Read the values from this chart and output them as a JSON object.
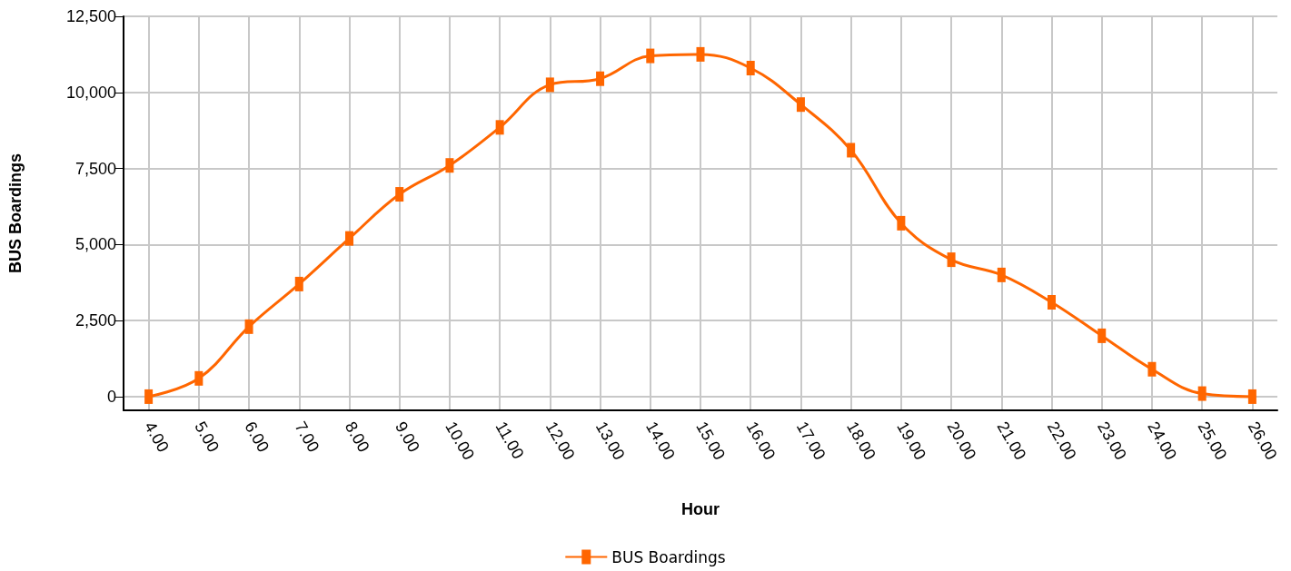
{
  "chart_data": {
    "type": "line",
    "xlabel": "Hour",
    "ylabel": "BUS Boardings",
    "x": [
      4,
      5,
      6,
      7,
      8,
      9,
      10,
      11,
      12,
      13,
      14,
      15,
      16,
      17,
      18,
      19,
      20,
      21,
      22,
      23,
      24,
      25,
      26
    ],
    "series": [
      {
        "name": "BUS Boardings",
        "color": "#ff6600",
        "values": [
          0,
          600,
          2300,
          3700,
          5200,
          6650,
          7600,
          8850,
          10250,
          10450,
          11200,
          11250,
          10800,
          9600,
          8100,
          5700,
          4500,
          4000,
          3100,
          2000,
          900,
          100,
          0
        ]
      }
    ],
    "xlim": [
      3.5,
      26.5
    ],
    "xticks": [
      {
        "value": 4,
        "label": "4.00"
      },
      {
        "value": 5,
        "label": "5.00"
      },
      {
        "value": 6,
        "label": "6.00"
      },
      {
        "value": 7,
        "label": "7.00"
      },
      {
        "value": 8,
        "label": "8.00"
      },
      {
        "value": 9,
        "label": "9.00"
      },
      {
        "value": 10,
        "label": "10.00"
      },
      {
        "value": 11,
        "label": "11.00"
      },
      {
        "value": 12,
        "label": "12.00"
      },
      {
        "value": 13,
        "label": "13.00"
      },
      {
        "value": 14,
        "label": "14.00"
      },
      {
        "value": 15,
        "label": "15.00"
      },
      {
        "value": 16,
        "label": "16.00"
      },
      {
        "value": 17,
        "label": "17.00"
      },
      {
        "value": 18,
        "label": "18.00"
      },
      {
        "value": 19,
        "label": "19.00"
      },
      {
        "value": 20,
        "label": "20.00"
      },
      {
        "value": 21,
        "label": "21.00"
      },
      {
        "value": 22,
        "label": "22.00"
      },
      {
        "value": 23,
        "label": "23.00"
      },
      {
        "value": 24,
        "label": "24.00"
      },
      {
        "value": 25,
        "label": "25.00"
      },
      {
        "value": 26,
        "label": "26.00"
      }
    ],
    "ylim": [
      -450,
      12500
    ],
    "yticks": [
      0,
      {
        "value": 2500,
        "label": "2,500"
      },
      {
        "value": 5000,
        "label": "5,000"
      },
      {
        "value": 7500,
        "label": "7,500"
      },
      {
        "value": 10000,
        "label": "10,000"
      },
      {
        "value": 12500,
        "label": "12,500"
      }
    ],
    "grid": true,
    "legend": "bottom",
    "marker": "square",
    "line_style": "solid"
  }
}
